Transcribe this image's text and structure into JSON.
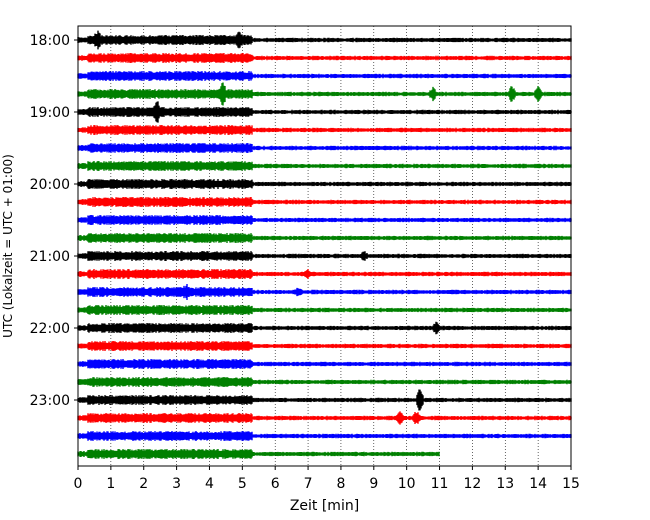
{
  "chart_data": {
    "type": "line",
    "title": "",
    "xlabel": "Zeit  [min]",
    "ylabel": "UTC (Lokalzeit = UTC + 01:00)",
    "xlim": [
      0,
      15
    ],
    "x_ticks": [
      "0",
      "1",
      "2",
      "3",
      "4",
      "5",
      "6",
      "7",
      "8",
      "9",
      "10",
      "11",
      "12",
      "13",
      "14",
      "15"
    ],
    "grid": "vertical dotted",
    "y_tick_labels": [
      "18:00",
      "19:00",
      "20:00",
      "21:00",
      "22:00",
      "23:00"
    ],
    "trace_interval_minutes": 15,
    "colors": [
      "#000000",
      "#ff0000",
      "#0000ff",
      "#008000"
    ],
    "series": [
      {
        "start": "18:00",
        "color": "#000000",
        "end_min": 15,
        "burst_end_min": 5.3,
        "events": [
          {
            "t": 0.6,
            "amp": 0.6
          },
          {
            "t": 4.9,
            "amp": 0.7
          }
        ]
      },
      {
        "start": "18:15",
        "color": "#ff0000",
        "end_min": 15,
        "burst_end_min": 5.3,
        "events": []
      },
      {
        "start": "18:30",
        "color": "#0000ff",
        "end_min": 15,
        "burst_end_min": 5.3,
        "events": []
      },
      {
        "start": "18:45",
        "color": "#008000",
        "end_min": 15,
        "burst_end_min": 5.3,
        "events": [
          {
            "t": 4.4,
            "amp": 1.0
          },
          {
            "t": 10.8,
            "amp": 0.7
          },
          {
            "t": 13.2,
            "amp": 0.9
          },
          {
            "t": 14.0,
            "amp": 1.0
          }
        ]
      },
      {
        "start": "19:00",
        "color": "#000000",
        "end_min": 15,
        "burst_end_min": 5.3,
        "events": [
          {
            "t": 2.4,
            "amp": 0.9
          }
        ]
      },
      {
        "start": "19:15",
        "color": "#ff0000",
        "end_min": 15,
        "burst_end_min": 5.3,
        "events": []
      },
      {
        "start": "19:30",
        "color": "#0000ff",
        "end_min": 15,
        "burst_end_min": 5.3,
        "events": []
      },
      {
        "start": "19:45",
        "color": "#008000",
        "end_min": 15,
        "burst_end_min": 5.3,
        "events": []
      },
      {
        "start": "20:00",
        "color": "#000000",
        "end_min": 15,
        "burst_end_min": 5.3,
        "events": []
      },
      {
        "start": "20:15",
        "color": "#ff0000",
        "end_min": 15,
        "burst_end_min": 5.3,
        "events": []
      },
      {
        "start": "20:30",
        "color": "#0000ff",
        "end_min": 15,
        "burst_end_min": 5.3,
        "events": []
      },
      {
        "start": "20:45",
        "color": "#008000",
        "end_min": 15,
        "burst_end_min": 5.3,
        "events": []
      },
      {
        "start": "21:00",
        "color": "#000000",
        "end_min": 15,
        "burst_end_min": 5.3,
        "events": [
          {
            "t": 8.7,
            "amp": 0.4
          }
        ]
      },
      {
        "start": "21:15",
        "color": "#ff0000",
        "end_min": 15,
        "burst_end_min": 5.3,
        "events": [
          {
            "t": 7.0,
            "amp": 0.4
          }
        ]
      },
      {
        "start": "21:30",
        "color": "#0000ff",
        "end_min": 15,
        "burst_end_min": 5.3,
        "events": [
          {
            "t": 3.3,
            "amp": 0.4
          },
          {
            "t": 6.7,
            "amp": 0.4
          }
        ]
      },
      {
        "start": "21:45",
        "color": "#008000",
        "end_min": 15,
        "burst_end_min": 5.3,
        "events": []
      },
      {
        "start": "22:00",
        "color": "#000000",
        "end_min": 15,
        "burst_end_min": 5.3,
        "events": [
          {
            "t": 10.9,
            "amp": 0.5
          }
        ]
      },
      {
        "start": "22:15",
        "color": "#ff0000",
        "end_min": 15,
        "burst_end_min": 5.3,
        "events": []
      },
      {
        "start": "22:30",
        "color": "#0000ff",
        "end_min": 15,
        "burst_end_min": 5.3,
        "events": []
      },
      {
        "start": "22:45",
        "color": "#008000",
        "end_min": 15,
        "burst_end_min": 5.3,
        "events": []
      },
      {
        "start": "23:00",
        "color": "#000000",
        "end_min": 15,
        "burst_end_min": 5.3,
        "events": [
          {
            "t": 10.4,
            "amp": 1.6
          }
        ]
      },
      {
        "start": "23:15",
        "color": "#ff0000",
        "end_min": 15,
        "burst_end_min": 5.3,
        "events": [
          {
            "t": 9.8,
            "amp": 0.6
          },
          {
            "t": 10.3,
            "amp": 0.7
          }
        ]
      },
      {
        "start": "23:30",
        "color": "#0000ff",
        "end_min": 15,
        "burst_end_min": 5.3,
        "events": []
      },
      {
        "start": "23:45",
        "color": "#008000",
        "end_min": 11.0,
        "burst_end_min": 5.3,
        "events": []
      }
    ]
  }
}
